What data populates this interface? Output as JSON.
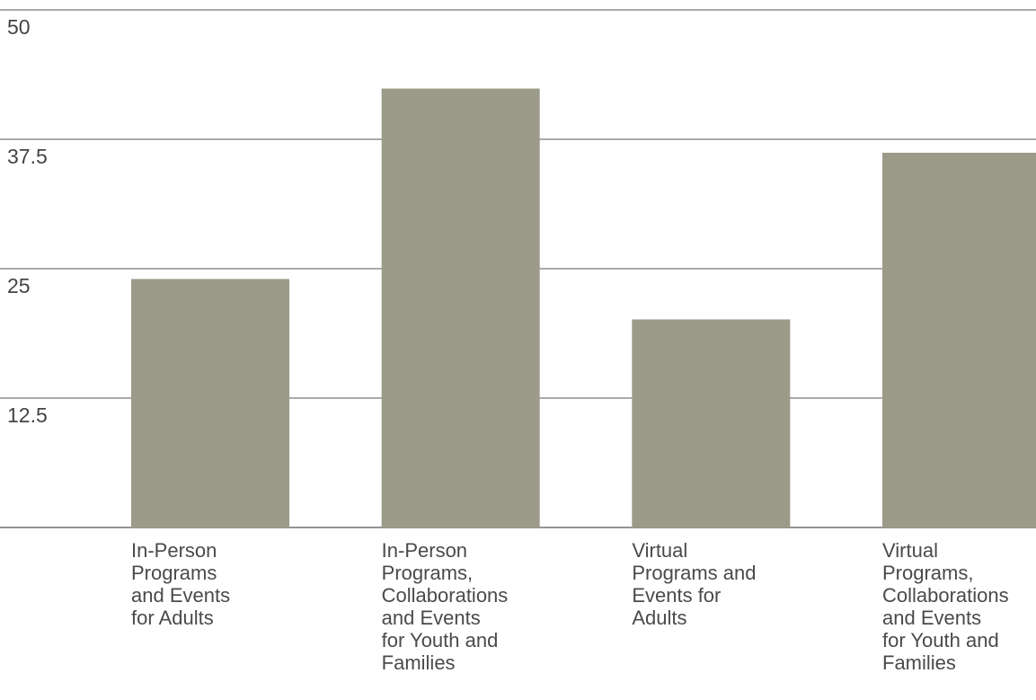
{
  "chart_data": {
    "type": "bar",
    "categories": [
      "In-Person Programs and Events for Adults",
      "In-Person Programs, Collaborations and Events for Youth and Families",
      "Virtual Programs and Events for Adults",
      "Virtual Programs, Collaborations and Events for Youth and Families"
    ],
    "category_label_lines": [
      [
        "In-Person",
        "Programs",
        "and Events",
        "for Adults"
      ],
      [
        "In-Person",
        "Programs,",
        "Collaborations",
        "and Events",
        "for Youth and",
        "Families"
      ],
      [
        "Virtual",
        "Programs and",
        "Events for",
        "Adults"
      ],
      [
        "Virtual",
        "Programs,",
        "Collaborations",
        "and Events",
        "for Youth and",
        "Families"
      ]
    ],
    "values": [
      24,
      42.4,
      20.1,
      36.2
    ],
    "yticks": [
      "50",
      "37.5",
      "25",
      "12.5"
    ],
    "ylim": [
      0,
      50
    ],
    "grid": true,
    "bar_color": "#9c9a89"
  }
}
